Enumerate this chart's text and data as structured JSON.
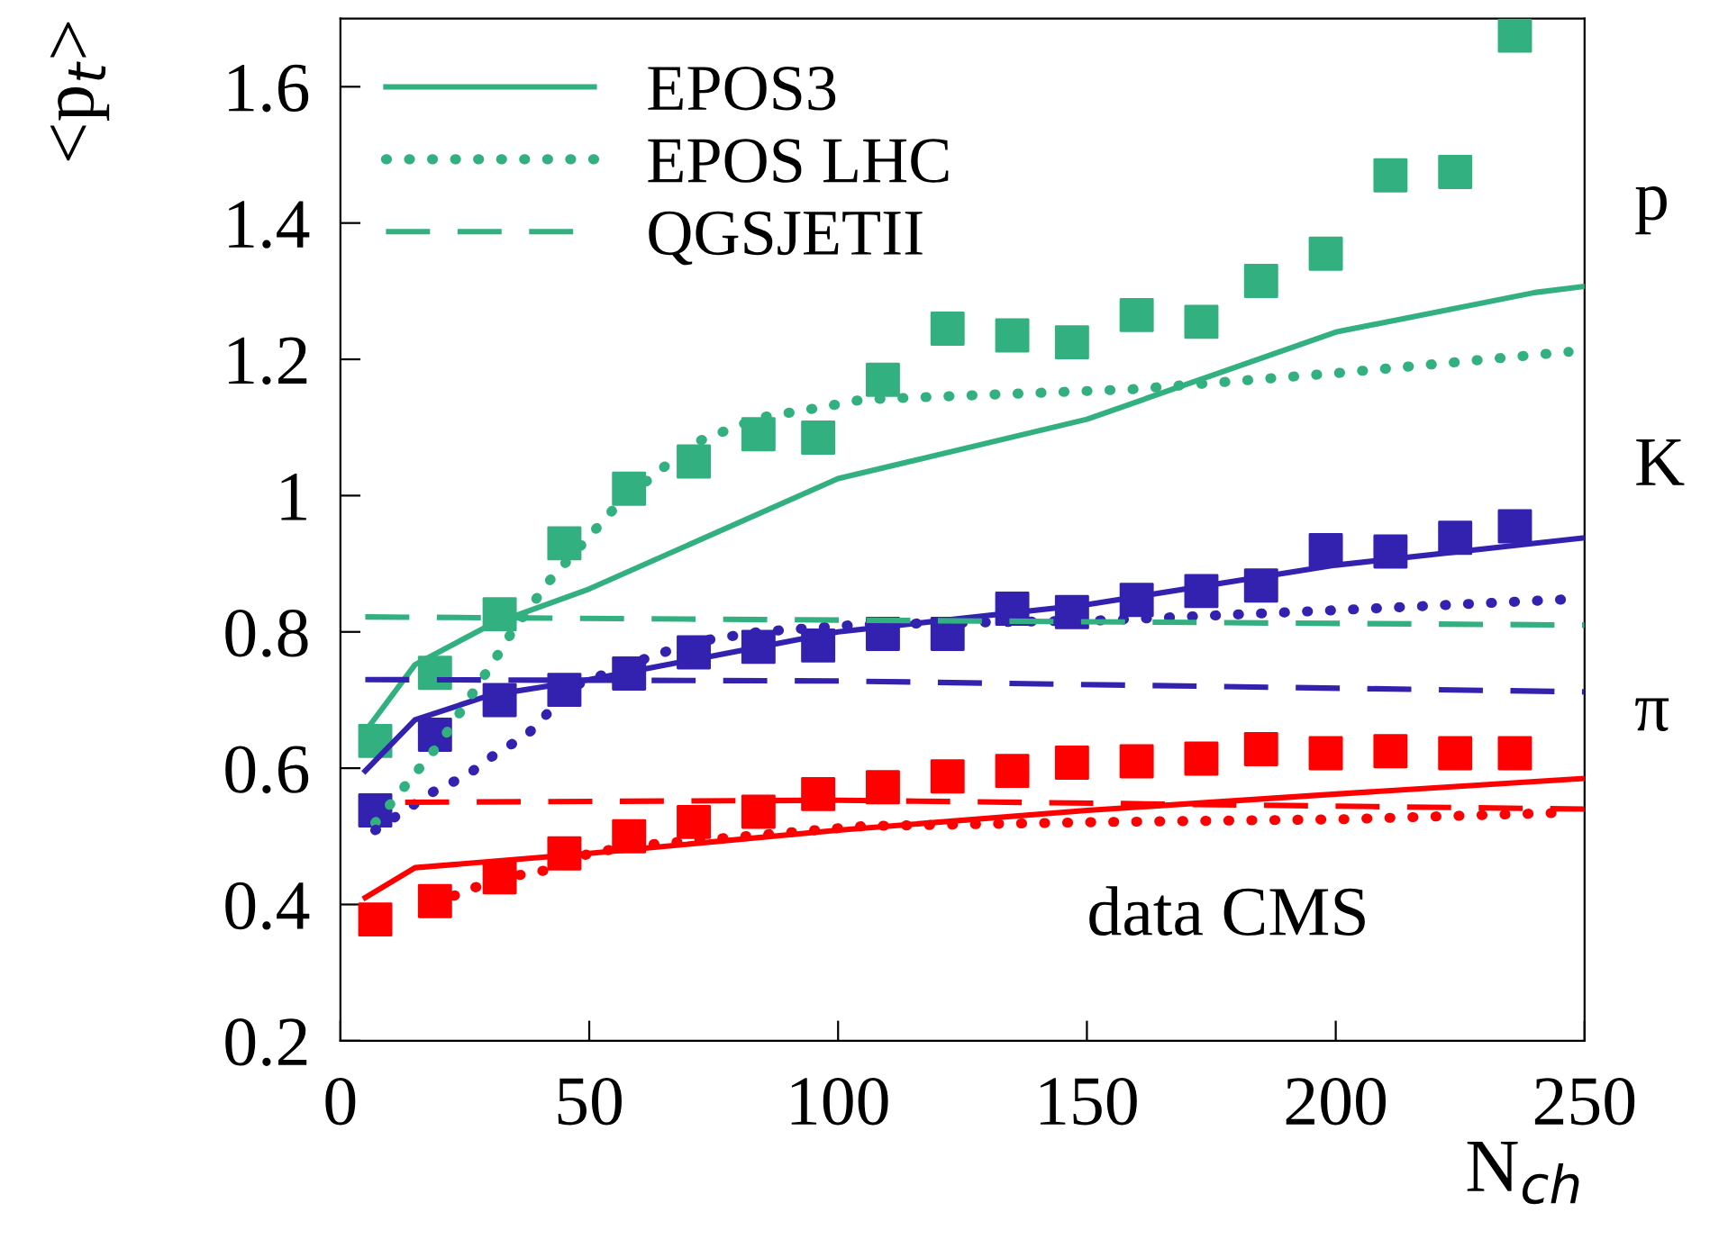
{
  "chart_data": {
    "type": "line",
    "xlabel": "N$_{ch}$",
    "ylabel": "<p$_{t}$>",
    "xlim": [
      0,
      250
    ],
    "ylim": [
      0.2,
      1.7
    ],
    "xticks": [
      0,
      50,
      100,
      150,
      200,
      250
    ],
    "yticks": [
      0.2,
      0.4,
      0.6,
      0.8,
      1,
      1.2,
      1.4,
      1.6
    ],
    "legend": "top left",
    "grid": false,
    "annotations": [
      "p",
      "K",
      "π",
      "data CMS"
    ],
    "series": [
      {
        "name": "EPOS3",
        "line_style": "solid",
        "color": "#33b07f",
        "x": [
          5,
          15,
          30,
          50,
          100,
          150,
          200,
          240,
          250
        ],
        "values": [
          0.654,
          0.752,
          0.81,
          0.863,
          1.025,
          1.112,
          1.24,
          1.298,
          1.307
        ]
      },
      {
        "line_style": "solid",
        "color": "#3322b0",
        "x": [
          5,
          15,
          30,
          50,
          100,
          150,
          200,
          250
        ],
        "values": [
          0.596,
          0.671,
          0.707,
          0.73,
          0.8,
          0.84,
          0.898,
          0.938
        ]
      },
      {
        "line_style": "solid",
        "color": "#ff0000",
        "x": [
          5,
          15,
          50,
          100,
          150,
          200,
          250
        ],
        "values": [
          0.41,
          0.454,
          0.475,
          0.509,
          0.538,
          0.562,
          0.585
        ]
      },
      {
        "name": "EPOS LHC",
        "line_style": "dotted",
        "color": "#33b07f",
        "x": [
          7,
          20,
          31,
          34.5,
          42,
          55.5,
          63,
          71,
          84,
          97,
          105,
          159,
          200.6,
          246.8
        ],
        "values": [
          0.52,
          0.637,
          0.759,
          0.8,
          0.875,
          0.985,
          1.03,
          1.077,
          1.114,
          1.13,
          1.141,
          1.156,
          1.18,
          1.211
        ]
      },
      {
        "line_style": "dotted",
        "color": "#3322b0",
        "x": [
          7,
          19,
          25.5,
          31,
          37.5,
          41.2,
          46,
          59,
          71,
          84,
          105,
          153,
          200.6,
          247
        ],
        "values": [
          0.509,
          0.567,
          0.59,
          0.62,
          0.649,
          0.677,
          0.718,
          0.755,
          0.785,
          0.8,
          0.811,
          0.817,
          0.832,
          0.848
        ]
      },
      {
        "line_style": "dotted",
        "color": "#ff0000",
        "x": [
          18.6,
          25.7,
          33.6,
          41.2,
          50,
          59,
          97,
          105,
          153,
          200.6,
          247
        ],
        "values": [
          0.399,
          0.422,
          0.44,
          0.45,
          0.475,
          0.486,
          0.51,
          0.515,
          0.521,
          0.525,
          0.535
        ]
      },
      {
        "name": "QGSJETII",
        "line_style": "dashed",
        "color": "#33b07f",
        "x": [
          5,
          250
        ],
        "values": [
          0.822,
          0.81
        ]
      },
      {
        "line_style": "dashed",
        "color": "#3322b0",
        "x": [
          5,
          100,
          250
        ],
        "values": [
          0.73,
          0.728,
          0.712
        ]
      },
      {
        "line_style": "dashed",
        "color": "#ff0000",
        "x": [
          13,
          100,
          250
        ],
        "values": [
          0.55,
          0.553,
          0.54
        ]
      },
      {
        "type": "scatter",
        "marker": "square",
        "color": "#33b07f",
        "x": [
          7,
          19,
          32,
          45,
          58,
          71,
          84,
          96,
          109,
          122,
          135,
          147,
          160,
          173,
          185,
          198,
          211,
          224,
          236
        ],
        "values": [
          0.64,
          0.74,
          0.826,
          0.93,
          1.01,
          1.05,
          1.09,
          1.085,
          1.17,
          1.245,
          1.235,
          1.225,
          1.265,
          1.255,
          1.315,
          1.355,
          1.47,
          1.475,
          1.675
        ]
      },
      {
        "type": "scatter",
        "marker": "square",
        "color": "#3322b0",
        "x": [
          7,
          19,
          32,
          45,
          58,
          71,
          84,
          96,
          109,
          122,
          135,
          147,
          160,
          173,
          185,
          198,
          211,
          224,
          236
        ],
        "values": [
          0.538,
          0.649,
          0.7,
          0.715,
          0.739,
          0.77,
          0.778,
          0.78,
          0.797,
          0.797,
          0.834,
          0.829,
          0.847,
          0.86,
          0.868,
          0.92,
          0.918,
          0.938,
          0.955
        ]
      },
      {
        "type": "scatter",
        "marker": "square",
        "color": "#ff0000",
        "x": [
          7,
          19,
          32,
          45,
          58,
          71,
          84,
          96,
          109,
          122,
          135,
          147,
          160,
          173,
          185,
          198,
          211,
          224,
          236
        ],
        "values": [
          0.378,
          0.405,
          0.44,
          0.475,
          0.5,
          0.521,
          0.536,
          0.562,
          0.572,
          0.588,
          0.596,
          0.608,
          0.61,
          0.614,
          0.628,
          0.622,
          0.625,
          0.622,
          0.622
        ]
      }
    ]
  }
}
